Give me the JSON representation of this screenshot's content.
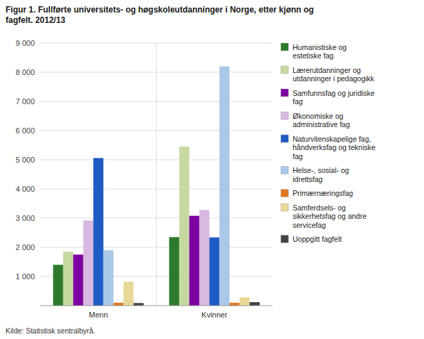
{
  "chart_data": {
    "type": "bar",
    "title": "Figur 1. Fullførte universitets- og høgskoleutdanninger i Norge, etter kjønn og\nfagfelt. 2012/13",
    "annotations": [
      "Kilde: Statistisk sentralbyrå."
    ],
    "categories": [
      "Menn",
      "Kvinner"
    ],
    "series": [
      {
        "name": "Humanistiske og\nestetiske fag",
        "color": "#2d7a2d",
        "values": [
          1400,
          2350
        ]
      },
      {
        "name": "Lærerutdanninger og\nutdanninger i pedagogikk",
        "color": "#c5d9a0",
        "values": [
          1850,
          5450
        ]
      },
      {
        "name": "Samfunnsfag og juridiske\nfag",
        "color": "#7b00a0",
        "values": [
          1750,
          3080
        ]
      },
      {
        "name": "Økonomiske og\nadministrative fag",
        "color": "#d8b8e0",
        "values": [
          2920,
          3280
        ]
      },
      {
        "name": "Naturvitenskapelige fag,\nhåndverksfag og tekniske\nfag",
        "color": "#1f5bc4",
        "values": [
          5060,
          2340
        ]
      },
      {
        "name": "Helse-, sosial- og\nidrettsfag",
        "color": "#aac8e8",
        "values": [
          1900,
          8200
        ]
      },
      {
        "name": "Primærnæringsfag",
        "color": "#e07820",
        "values": [
          100,
          100
        ]
      },
      {
        "name": "Samferdsels- og\nsikkerhetsfag og andre\nservicefag",
        "color": "#e8d898",
        "values": [
          820,
          290
        ]
      },
      {
        "name": "Uoppgitt fagfelt",
        "color": "#444444",
        "values": [
          90,
          120
        ]
      }
    ],
    "ylim": [
      0,
      9000
    ],
    "yticks": [
      {
        "value": 1000,
        "label": "1 000"
      },
      {
        "value": 2000,
        "label": "2 000"
      },
      {
        "value": 3000,
        "label": "3 000"
      },
      {
        "value": 4000,
        "label": "4 000"
      },
      {
        "value": 5000,
        "label": "5 000"
      },
      {
        "value": 6000,
        "label": "6 000"
      },
      {
        "value": 7000,
        "label": "7 000"
      },
      {
        "value": 8000,
        "label": "8 000"
      },
      {
        "value": 9000,
        "label": "9 000"
      }
    ],
    "grid": true,
    "legend": "right"
  }
}
